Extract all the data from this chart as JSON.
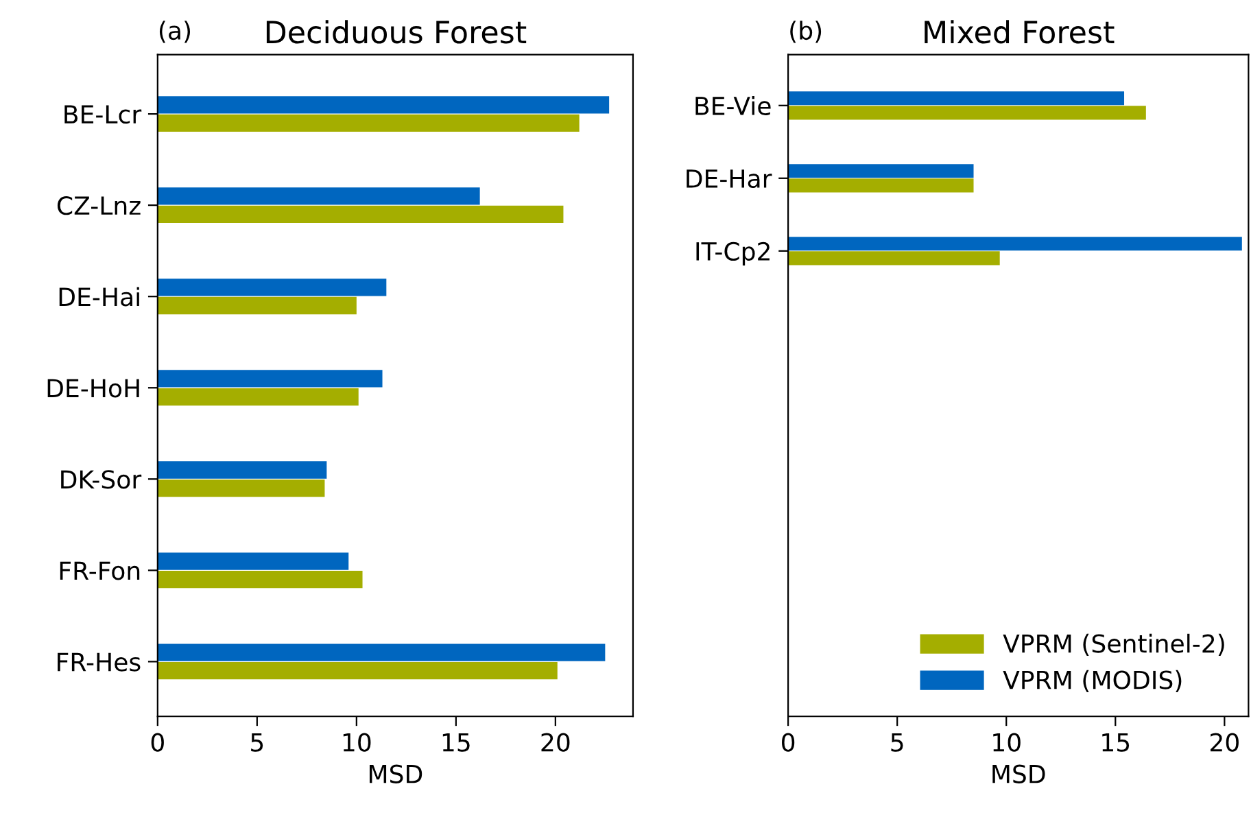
{
  "chart_data": [
    {
      "type": "bar",
      "orientation": "horizontal",
      "title": "Deciduous Forest",
      "xlabel": "MSD",
      "annotations": [
        "(a)"
      ],
      "categories": [
        "BE-Lcr",
        "CZ-Lnz",
        "DE-Hai",
        "DE-HoH",
        "DK-Sor",
        "FR-Fon",
        "FR-Hes"
      ],
      "xlim": [
        0,
        23.9
      ],
      "xticks": [
        0,
        5,
        10,
        15,
        20
      ],
      "grid": false,
      "legend": false,
      "series": [
        {
          "color": "#a4ae00",
          "values": [
            21.2,
            20.4,
            10.0,
            10.1,
            8.4,
            10.3,
            20.1
          ]
        },
        {
          "color": "#0066bf",
          "values": [
            22.7,
            16.2,
            11.5,
            11.3,
            8.5,
            9.6,
            22.5
          ]
        }
      ]
    },
    {
      "type": "bar",
      "orientation": "horizontal",
      "title": "Mixed Forest",
      "xlabel": "MSD",
      "annotations": [
        "(b)"
      ],
      "categories": [
        "BE-Vie",
        "DE-Har",
        "IT-Cp2",
        null,
        null,
        null,
        null,
        null,
        null
      ],
      "xlim": [
        0,
        21.1
      ],
      "xticks": [
        0,
        5,
        10,
        15,
        20
      ],
      "grid": false,
      "legend": "lower right",
      "series": [
        {
          "name": "VPRM (Sentinel-2)",
          "color": "#a4ae00",
          "values": [
            16.4,
            8.5,
            9.7,
            null,
            null,
            null,
            null,
            null,
            null
          ]
        },
        {
          "name": "VPRM (MODIS)",
          "color": "#0066bf",
          "values": [
            15.4,
            8.5,
            20.8,
            null,
            null,
            null,
            null,
            null,
            null
          ]
        }
      ]
    }
  ]
}
